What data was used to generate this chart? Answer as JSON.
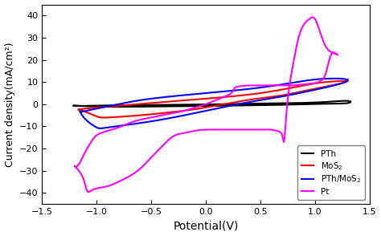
{
  "title": "",
  "xlabel": "Potential(V)",
  "ylabel": "Current density(mA/cm²)",
  "xlim": [
    -1.5,
    1.5
  ],
  "ylim": [
    -45,
    45
  ],
  "xticks": [
    -1.5,
    -1.0,
    -0.5,
    0.0,
    0.5,
    1.0,
    1.5
  ],
  "yticks": [
    -40,
    -30,
    -20,
    -10,
    0,
    10,
    20,
    30,
    40
  ],
  "legend_labels": [
    "PTh",
    "MoS$_2$",
    "PTh/MoS$_2$",
    "Pt"
  ],
  "legend_colors": [
    "black",
    "red",
    "blue",
    "magenta"
  ],
  "background_color": "#ffffff",
  "pth_upper_x": [
    -1.15,
    -0.8,
    -0.4,
    0.0,
    0.4,
    0.8,
    1.1,
    1.3
  ],
  "pth_upper_y": [
    -0.8,
    -0.5,
    -0.3,
    -0.1,
    0.2,
    0.5,
    1.0,
    1.5
  ],
  "pth_lower_x": [
    1.3,
    1.1,
    0.8,
    0.4,
    0.0,
    -0.4,
    -0.8,
    -1.15
  ],
  "pth_lower_y": [
    0.5,
    0.2,
    -0.2,
    -0.5,
    -0.8,
    -1.0,
    -1.2,
    -0.8
  ],
  "mos2_upper_x": [
    -1.15,
    -1.0,
    -0.5,
    0.0,
    0.5,
    0.9,
    1.1,
    1.25,
    1.3
  ],
  "mos2_upper_y": [
    -2.5,
    -1.5,
    0.5,
    2.5,
    5.0,
    8.5,
    10.0,
    10.5,
    10.5
  ],
  "mos2_lower_x": [
    1.3,
    1.25,
    1.0,
    0.7,
    0.4,
    0.0,
    -0.3,
    -0.6,
    -0.9,
    -1.0,
    -1.1,
    -1.15
  ],
  "mos2_lower_y": [
    10.5,
    9.5,
    7.0,
    4.0,
    2.0,
    -1.5,
    -3.5,
    -5.0,
    -6.0,
    -5.5,
    -3.5,
    -2.5
  ],
  "ptm_upper_x": [
    -1.15,
    -1.05,
    -0.8,
    -0.5,
    0.0,
    0.5,
    0.9,
    1.1,
    1.25,
    1.3
  ],
  "ptm_upper_y": [
    -3.5,
    -2.5,
    0.0,
    2.5,
    5.0,
    7.5,
    10.5,
    11.5,
    11.5,
    11.0
  ],
  "ptm_lower_x": [
    1.3,
    1.25,
    1.0,
    0.7,
    0.4,
    0.0,
    -0.3,
    -0.6,
    -0.9,
    -1.0,
    -1.1,
    -1.15
  ],
  "ptm_lower_y": [
    11.0,
    9.5,
    6.5,
    3.5,
    1.0,
    -3.0,
    -6.0,
    -8.5,
    -10.5,
    -10.5,
    -7.0,
    -3.5
  ],
  "pt_x": [
    -1.2,
    -1.15,
    -1.12,
    -1.1,
    -1.08,
    -1.05,
    -1.0,
    -0.9,
    -0.8,
    -0.7,
    -0.6,
    -0.5,
    -0.4,
    -0.3,
    -0.2,
    -0.1,
    0.0,
    0.1,
    0.2,
    0.25,
    0.3,
    0.5,
    0.6,
    0.65,
    0.7,
    0.72,
    0.75,
    0.8,
    0.85,
    0.9,
    0.95,
    1.0,
    1.05,
    1.1,
    1.15,
    1.2,
    1.2,
    1.15,
    1.1,
    1.05,
    1.0,
    0.9,
    0.8,
    0.7,
    0.6,
    0.5,
    0.3,
    0.25,
    0.2,
    0.1,
    0.0,
    -0.1,
    -0.2,
    -0.3,
    -0.4,
    -0.5,
    -0.6,
    -0.7,
    -0.8,
    -0.9,
    -1.0,
    -1.05,
    -1.1,
    -1.15,
    -1.2
  ],
  "pt_y": [
    -28.0,
    -31.0,
    -34.0,
    -37.5,
    -39.5,
    -39.0,
    -38.0,
    -37.0,
    -35.0,
    -32.5,
    -29.0,
    -24.0,
    -19.0,
    -14.5,
    -13.0,
    -12.0,
    -11.5,
    -11.5,
    -11.5,
    -11.5,
    -11.5,
    -11.5,
    -11.5,
    -12.0,
    -14.0,
    -16.0,
    2.0,
    18.0,
    30.0,
    36.0,
    38.5,
    38.5,
    32.0,
    26.0,
    23.5,
    22.5,
    22.5,
    22.5,
    14.0,
    10.5,
    9.5,
    9.0,
    8.5,
    8.5,
    8.5,
    8.5,
    8.0,
    6.0,
    4.0,
    2.0,
    0.0,
    -1.5,
    -3.0,
    -4.0,
    -5.0,
    -6.0,
    -7.0,
    -8.5,
    -10.5,
    -12.0,
    -14.0,
    -17.0,
    -21.0,
    -26.0,
    -28.0
  ]
}
